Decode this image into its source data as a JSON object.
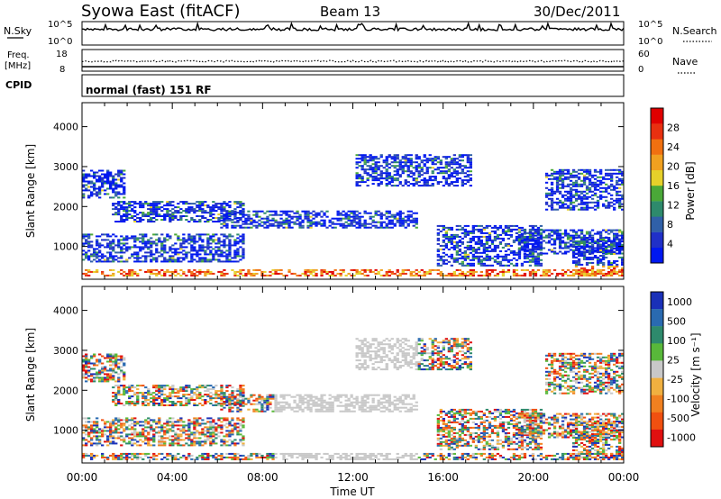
{
  "header": {
    "station": "Syowa East (fitACF)",
    "beam": "Beam 13",
    "date": "30/Dec/2011"
  },
  "noise_panel": {
    "left_label": "N.Sky",
    "right_label": "N.Search",
    "left_ticks": [
      "10^5",
      "10^0"
    ],
    "right_ticks": [
      "10^5",
      "10^0"
    ]
  },
  "freq_panel": {
    "left_label_1": "Freq.",
    "left_label_2": "[MHz]",
    "right_label": "Nave",
    "left_ticks": [
      "18",
      "8"
    ],
    "right_ticks": [
      "60",
      "0"
    ]
  },
  "cpid_panel": {
    "label": "CPID",
    "mode": "normal (fast) 151 RF"
  },
  "chart_data": [
    {
      "type": "heatmap",
      "panel": "power",
      "ylabel": "Slant Range [km]",
      "xlabel": "Time UT",
      "yticks": [
        1000,
        2000,
        3000,
        4000
      ],
      "ylim": [
        180,
        4600
      ],
      "xticks": [
        "00:00",
        "04:00",
        "08:00",
        "12:00",
        "16:00",
        "20:00",
        "00:00"
      ],
      "colorbar_label": "Power [dB]",
      "colorbar_ticks": [
        "4",
        "8",
        "12",
        "16",
        "20",
        "24",
        "28"
      ],
      "colors": [
        "#0018f0",
        "#2030c8",
        "#3060a8",
        "#2e8a6c",
        "#4aa838",
        "#e6d02a",
        "#f0a020",
        "#f07010",
        "#e83010",
        "#e00000"
      ]
    },
    {
      "type": "heatmap",
      "panel": "velocity",
      "ylabel": "Slant Range [km]",
      "xlabel": "Time UT",
      "yticks": [
        1000,
        2000,
        3000,
        4000
      ],
      "ylim": [
        180,
        4600
      ],
      "xticks": [
        "00:00",
        "04:00",
        "08:00",
        "12:00",
        "16:00",
        "20:00",
        "00:00"
      ],
      "colorbar_label": "Velocity [m s⁻¹]",
      "colorbar_ticks": [
        "1000",
        "500",
        "100",
        "25",
        "-25",
        "-100",
        "-500",
        "-1000"
      ],
      "colors": [
        "#1a30b8",
        "#2a6ab0",
        "#2e8a6c",
        "#58b83a",
        "#c8c8c8",
        "#f0b040",
        "#f08020",
        "#f05010",
        "#e01010"
      ]
    }
  ],
  "time_axis_label": "Time UT"
}
